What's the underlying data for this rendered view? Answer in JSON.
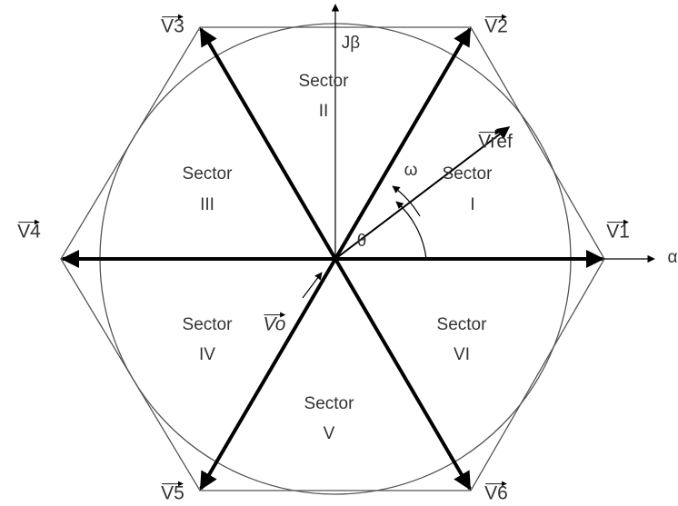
{
  "diagram": {
    "vectors": [
      {
        "label": "V1"
      },
      {
        "label": "V2"
      },
      {
        "label": "V3"
      },
      {
        "label": "V4"
      },
      {
        "label": "V5"
      },
      {
        "label": "V6"
      }
    ],
    "reference": {
      "label": "Vref"
    },
    "zero": {
      "label": "Vo"
    },
    "axes": {
      "real": "α",
      "imaginary": "Jβ"
    },
    "angles": {
      "theta": "θ",
      "omega": "ω"
    },
    "sectors": [
      {
        "word": "Sector",
        "numeral": "I"
      },
      {
        "word": "Sector",
        "numeral": "II"
      },
      {
        "word": "Sector",
        "numeral": "III"
      },
      {
        "word": "Sector",
        "numeral": "IV"
      },
      {
        "word": "Sector",
        "numeral": "V"
      },
      {
        "word": "Sector",
        "numeral": "VI"
      }
    ]
  }
}
